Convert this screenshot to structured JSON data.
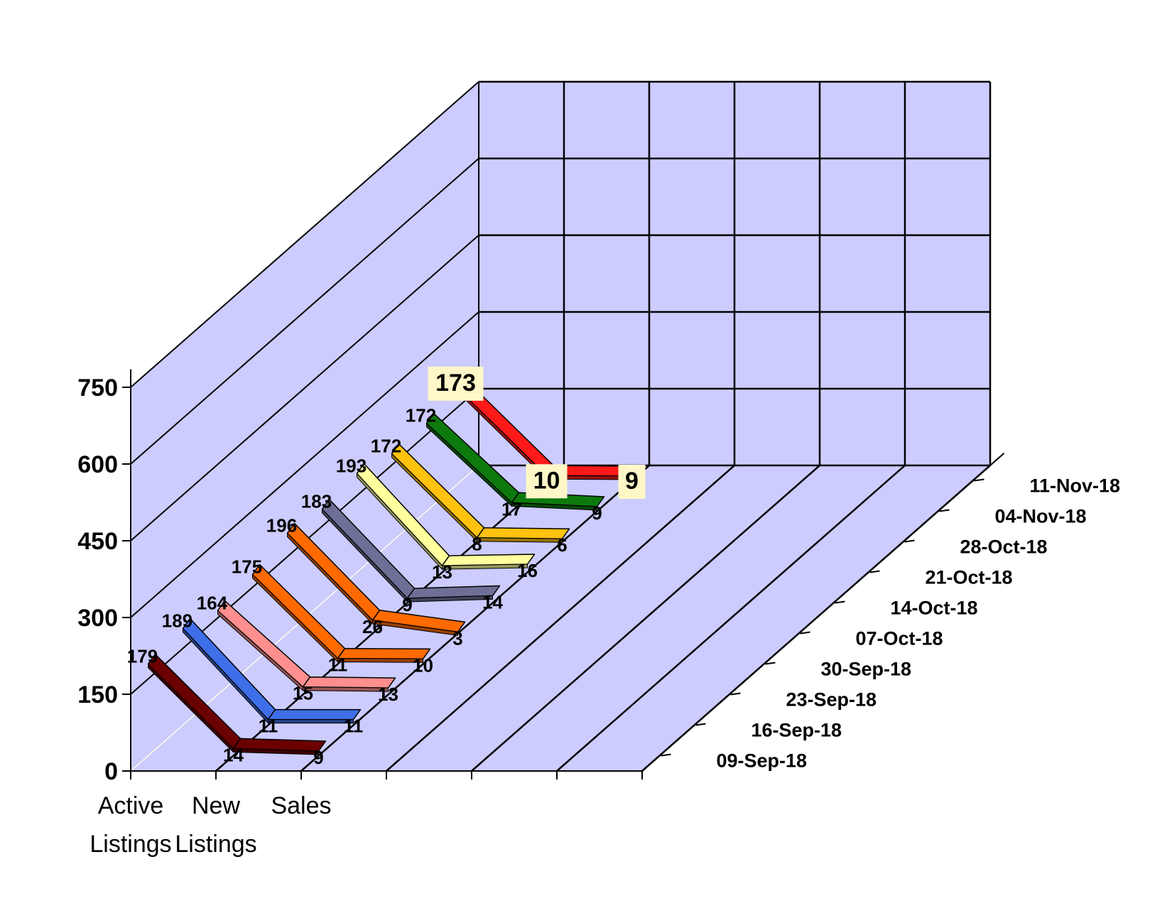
{
  "chart_data": {
    "type": "line",
    "subtype": "3d-ribbon",
    "categories": [
      "Active Listings",
      "New Listings",
      "Sales"
    ],
    "category_lines": [
      [
        "Active",
        "Listings"
      ],
      [
        "New",
        "Listings"
      ],
      [
        "Sales",
        ""
      ]
    ],
    "ylim": [
      0,
      750
    ],
    "yticks": [
      0,
      150,
      300,
      450,
      600,
      750
    ],
    "grid": true,
    "series": [
      {
        "name": "09-Sep-18",
        "values": [
          179,
          14,
          9
        ],
        "color": "#6b0000"
      },
      {
        "name": "16-Sep-18",
        "values": [
          189,
          11,
          11
        ],
        "color": "#3f6fe8"
      },
      {
        "name": "23-Sep-18",
        "values": [
          164,
          15,
          13
        ],
        "color": "#ff8f8f"
      },
      {
        "name": "30-Sep-18",
        "values": [
          175,
          11,
          10
        ],
        "color": "#ff6a00"
      },
      {
        "name": "07-Oct-18",
        "values": [
          196,
          26,
          3
        ],
        "color": "#ff6a00"
      },
      {
        "name": "14-Oct-18",
        "values": [
          183,
          9,
          14
        ],
        "color": "#6e6f96"
      },
      {
        "name": "21-Oct-18",
        "values": [
          193,
          13,
          16
        ],
        "color": "#ffff9e"
      },
      {
        "name": "28-Oct-18",
        "values": [
          172,
          8,
          6
        ],
        "color": "#ffc20e"
      },
      {
        "name": "04-Nov-18",
        "values": [
          172,
          17,
          9
        ],
        "color": "#0d7a0d"
      },
      {
        "name": "11-Nov-18",
        "values": [
          173,
          10,
          9
        ],
        "color": "#ff1a1a"
      }
    ],
    "highlight_series": "11-Nov-18",
    "colors": {
      "wall": "#ccccff",
      "grid": "#000000",
      "label_box": "#fff7c8"
    }
  }
}
